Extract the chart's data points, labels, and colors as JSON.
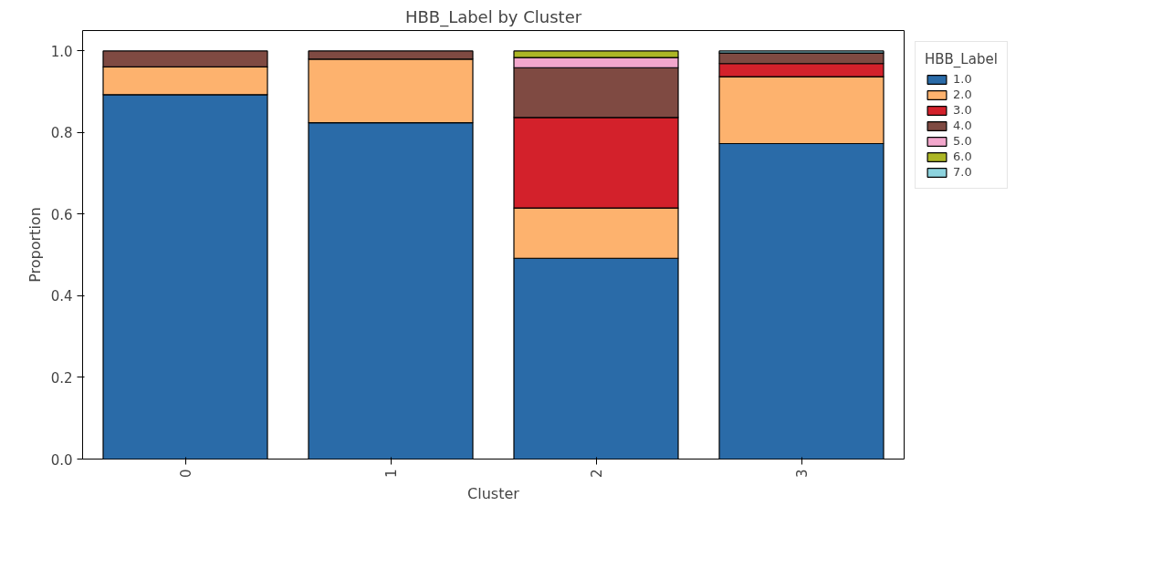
{
  "chart_data": {
    "type": "bar",
    "stacked": true,
    "title": "HBB_Label by Cluster",
    "xlabel": "Cluster",
    "ylabel": "Proportion",
    "legend_title": "HBB_Label",
    "categories": [
      "0",
      "1",
      "2",
      "3"
    ],
    "series": [
      {
        "name": "1.0",
        "color": "#2a6ba8",
        "values": [
          0.893,
          0.824,
          0.492,
          0.773
        ]
      },
      {
        "name": "2.0",
        "color": "#fdb26e",
        "values": [
          0.068,
          0.156,
          0.123,
          0.164
        ]
      },
      {
        "name": "3.0",
        "color": "#d3212b",
        "values": [
          null,
          null,
          0.222,
          0.032
        ]
      },
      {
        "name": "4.0",
        "color": "#7f4a42",
        "values": [
          0.039,
          0.02,
          0.122,
          0.026
        ]
      },
      {
        "name": "5.0",
        "color": "#f2a7cc",
        "values": [
          null,
          null,
          0.025,
          null
        ]
      },
      {
        "name": "6.0",
        "color": "#acb625",
        "values": [
          null,
          null,
          0.016,
          null
        ]
      },
      {
        "name": "7.0",
        "color": "#8dd3de",
        "values": [
          null,
          null,
          null,
          0.005
        ]
      }
    ],
    "ylim": [
      0,
      1.05
    ],
    "yticks": [
      {
        "value": 0,
        "label": "0.0"
      },
      {
        "value": 0.2,
        "label": "0.2"
      },
      {
        "value": 0.4,
        "label": "0.4"
      },
      {
        "value": 0.6,
        "label": "0.6"
      },
      {
        "value": 0.8,
        "label": "0.8"
      },
      {
        "value": 1.0,
        "label": "1.0"
      }
    ],
    "grid": false,
    "legend": "top right"
  }
}
